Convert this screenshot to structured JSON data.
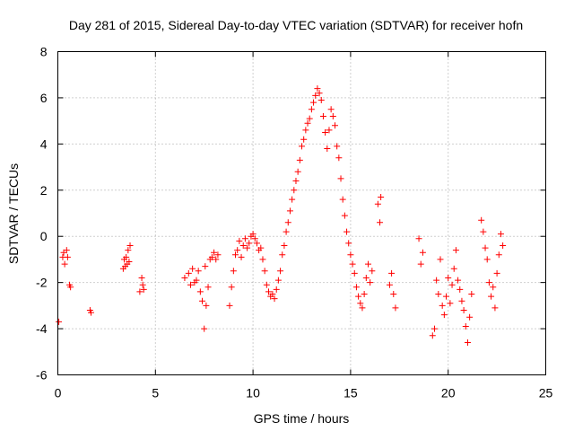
{
  "chart_data": {
    "type": "scatter",
    "title": "Day 281 of 2015, Sidereal Day-to-day VTEC variation (SDTVAR) for receiver hofn",
    "xlabel": "GPS time / hours",
    "ylabel": "SDTVAR / TECUs",
    "xlim": [
      0,
      25
    ],
    "ylim": [
      -6,
      8
    ],
    "xticks": [
      0,
      5,
      10,
      15,
      20,
      25
    ],
    "yticks": [
      -6,
      -4,
      -2,
      0,
      2,
      4,
      6,
      8
    ],
    "grid": true,
    "marker": "+",
    "series": [
      {
        "name": "SDTVAR",
        "color": "#ff0000",
        "x": [
          0.05,
          0.25,
          0.3,
          0.35,
          0.45,
          0.5,
          0.6,
          0.65,
          1.65,
          1.7,
          3.35,
          3.4,
          3.45,
          3.5,
          3.55,
          3.6,
          3.65,
          3.7,
          4.2,
          4.3,
          4.35,
          4.4,
          6.5,
          6.7,
          6.8,
          6.9,
          7.0,
          7.1,
          7.2,
          7.3,
          7.4,
          7.5,
          7.55,
          7.6,
          7.7,
          7.8,
          7.9,
          8.0,
          8.1,
          8.2,
          8.8,
          8.9,
          9.0,
          9.1,
          9.2,
          9.3,
          9.4,
          9.5,
          9.6,
          9.7,
          9.8,
          9.9,
          10.0,
          10.1,
          10.2,
          10.3,
          10.4,
          10.5,
          10.6,
          10.7,
          10.8,
          10.9,
          11.0,
          11.1,
          11.2,
          11.3,
          11.4,
          11.5,
          11.6,
          11.7,
          11.8,
          11.9,
          12.0,
          12.1,
          12.2,
          12.3,
          12.4,
          12.5,
          12.6,
          12.7,
          12.8,
          12.9,
          13.0,
          13.1,
          13.2,
          13.3,
          13.4,
          13.5,
          13.6,
          13.7,
          13.8,
          13.9,
          14.0,
          14.1,
          14.2,
          14.3,
          14.4,
          14.5,
          14.6,
          14.7,
          14.8,
          14.9,
          15.0,
          15.1,
          15.2,
          15.3,
          15.4,
          15.5,
          15.6,
          15.7,
          15.8,
          15.9,
          16.0,
          16.1,
          16.4,
          16.5,
          16.55,
          17.0,
          17.1,
          17.2,
          17.3,
          18.5,
          18.6,
          18.7,
          19.2,
          19.3,
          19.4,
          19.5,
          19.6,
          19.7,
          19.8,
          19.9,
          20.0,
          20.1,
          20.2,
          20.3,
          20.4,
          20.5,
          20.6,
          20.7,
          20.8,
          20.9,
          21.0,
          21.1,
          21.2,
          21.7,
          21.8,
          21.9,
          22.0,
          22.1,
          22.2,
          22.3,
          22.4,
          22.5,
          22.6,
          22.7,
          22.8
        ],
        "y": [
          -3.7,
          -0.9,
          -0.7,
          -1.2,
          -0.6,
          -0.9,
          -2.1,
          -2.2,
          -3.2,
          -3.3,
          -1.4,
          -1.0,
          -1.3,
          -0.9,
          -1.2,
          -0.6,
          -1.1,
          -0.4,
          -2.4,
          -1.8,
          -2.1,
          -2.3,
          -1.8,
          -1.6,
          -2.1,
          -1.4,
          -2.0,
          -1.9,
          -1.5,
          -2.4,
          -2.8,
          -4.0,
          -1.3,
          -3.0,
          -2.2,
          -1.0,
          -0.9,
          -0.7,
          -1.0,
          -0.8,
          -3.0,
          -2.2,
          -1.5,
          -0.8,
          -0.6,
          -0.2,
          -0.9,
          -0.4,
          -0.1,
          -0.5,
          -0.3,
          0.0,
          0.1,
          -0.1,
          -0.3,
          -0.6,
          -0.5,
          -1.0,
          -1.5,
          -2.1,
          -2.4,
          -2.6,
          -2.5,
          -2.7,
          -2.3,
          -1.9,
          -1.5,
          -0.8,
          -0.4,
          0.2,
          0.6,
          1.1,
          1.6,
          2.0,
          2.4,
          2.8,
          3.3,
          3.9,
          4.2,
          4.6,
          4.9,
          5.1,
          5.5,
          5.8,
          6.1,
          6.4,
          6.2,
          5.9,
          5.2,
          4.5,
          3.8,
          4.6,
          5.5,
          5.2,
          4.8,
          3.9,
          3.4,
          2.5,
          1.6,
          0.9,
          0.2,
          -0.3,
          -0.8,
          -1.2,
          -1.6,
          -2.2,
          -2.6,
          -2.9,
          -3.1,
          -2.5,
          -1.8,
          -1.2,
          -2.0,
          -1.5,
          1.4,
          0.6,
          1.7,
          -2.1,
          -1.6,
          -2.5,
          -3.1,
          -0.1,
          -1.2,
          -0.7,
          -4.3,
          -4.0,
          -1.9,
          -2.5,
          -1.0,
          -3.0,
          -3.4,
          -2.6,
          -1.8,
          -2.9,
          -2.1,
          -1.4,
          -0.6,
          -1.9,
          -2.3,
          -2.8,
          -3.2,
          -3.9,
          -4.6,
          -3.5,
          -2.5,
          0.7,
          0.2,
          -0.5,
          -1.0,
          -2.0,
          -2.6,
          -2.2,
          -3.1,
          -1.6,
          -0.8,
          0.1,
          -0.4
        ]
      }
    ]
  }
}
